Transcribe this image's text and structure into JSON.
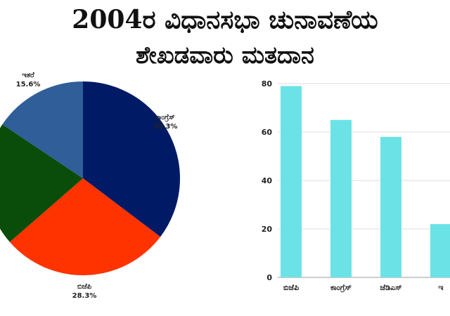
{
  "title_line1": "2004ರ ವಿಧಾನಸಭಾ ಚುನಾವಣೆಯ",
  "title_line2": "ಶೇಖಡವಾರು ಮತದಾನ",
  "chart_data": [
    {
      "type": "pie",
      "slices": [
        {
          "label": "ಕಾಂಗ್ರೆಸ್",
          "value": 35.3,
          "pct_label": "35.3%",
          "color": "#001a66"
        },
        {
          "label": "ಬಿಜೆಪಿ",
          "value": 28.3,
          "pct_label": "28.3%",
          "color": "#ff3300"
        },
        {
          "label": "",
          "value": 20.8,
          "pct_label": "",
          "color": "#0a4d0a"
        },
        {
          "label": "ಇತರೆ",
          "value": 15.6,
          "pct_label": "15.6%",
          "color": "#2f5e99"
        }
      ],
      "start_angle_deg": 0,
      "direction": "clockwise"
    },
    {
      "type": "bar",
      "categories": [
        "ಬಿಜೆಪಿ",
        "ಕಾಂಗ್ರೆಸ್",
        "ಜೆಡಿಎಸ್",
        "ಇ"
      ],
      "values": [
        79,
        65,
        58,
        22
      ],
      "bar_color": "#6be3e6",
      "ylim": [
        0,
        80
      ],
      "yticks": [
        0,
        20,
        40,
        60,
        80
      ],
      "grid": "horizontal"
    }
  ]
}
